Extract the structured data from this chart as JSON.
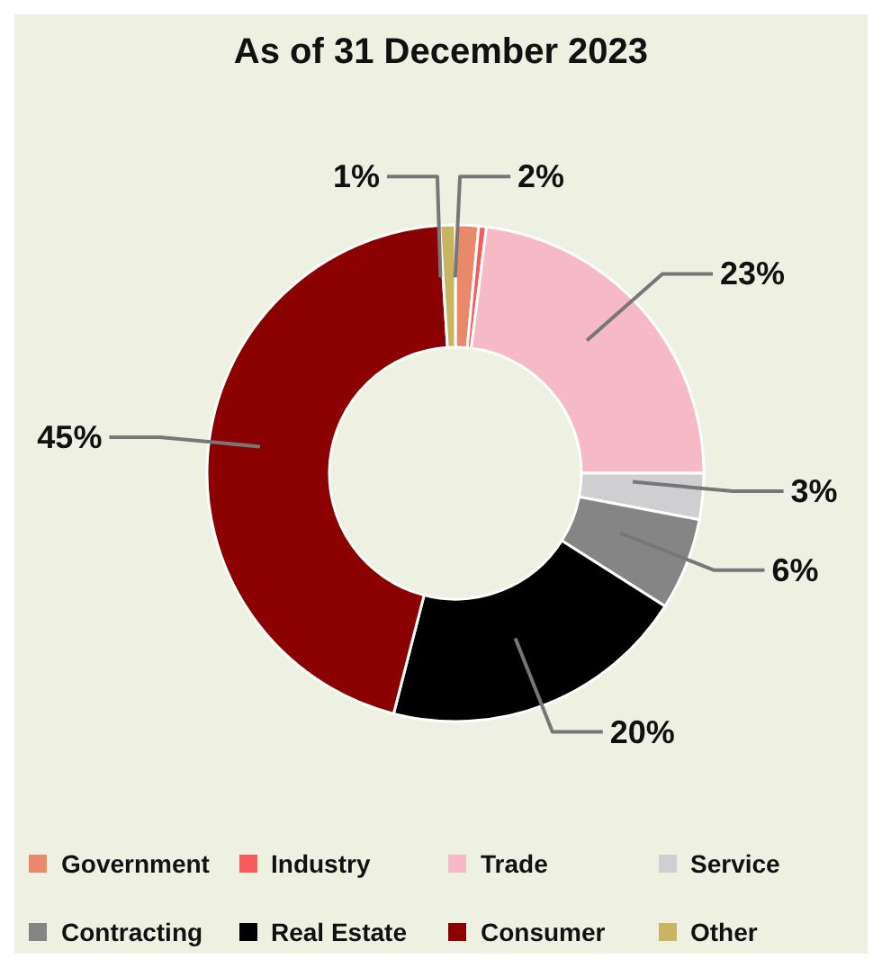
{
  "chart_data": {
    "type": "donut",
    "title": "As of 31 December 2023",
    "categories": [
      "Government",
      "Industry",
      "Trade",
      "Service",
      "Contracting",
      "Real Estate",
      "Consumer",
      "Other"
    ],
    "values": [
      1.5,
      0.5,
      23,
      3,
      6,
      20,
      45,
      1
    ],
    "value_labels": [
      "2%",
      null,
      "23%",
      "3%",
      "6%",
      "20%",
      "45%",
      "1%"
    ],
    "colors": [
      "#e8896a",
      "#f65c5c",
      "#f6bac6",
      "#cfcfd1",
      "#858585",
      "#000000",
      "#8b0000",
      "#c9b464"
    ],
    "legend": "bottom"
  }
}
